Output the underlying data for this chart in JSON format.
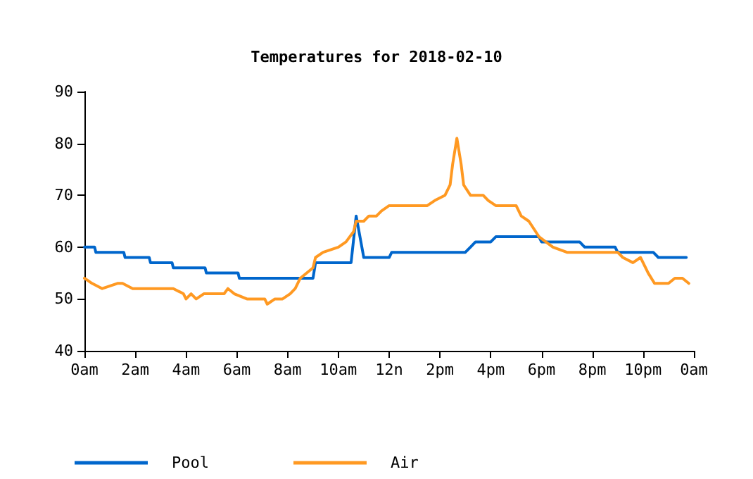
{
  "chart_data": {
    "type": "line",
    "title": "Temperatures for 2018-02-10",
    "xlim": [
      "2018-02-10T00:00",
      "2018-02-11T00:00"
    ],
    "xticks": [
      {
        "value": "2018-02-10T00:00",
        "label": "0am"
      },
      {
        "value": "2018-02-10T02:00",
        "label": "2am"
      },
      {
        "value": "2018-02-10T04:00",
        "label": "4am"
      },
      {
        "value": "2018-02-10T06:00",
        "label": "6am"
      },
      {
        "value": "2018-02-10T08:00",
        "label": "8am"
      },
      {
        "value": "2018-02-10T10:00",
        "label": "10am"
      },
      {
        "value": "2018-02-10T12:00",
        "label": "12n"
      },
      {
        "value": "2018-02-10T14:00",
        "label": "2pm"
      },
      {
        "value": "2018-02-10T16:00",
        "label": "4pm"
      },
      {
        "value": "2018-02-10T18:00",
        "label": "6pm"
      },
      {
        "value": "2018-02-10T20:00",
        "label": "8pm"
      },
      {
        "value": "2018-02-10T22:00",
        "label": "10pm"
      },
      {
        "value": "2018-02-11T00:00",
        "label": "0am"
      }
    ],
    "ylim": [
      40,
      90
    ],
    "yticks": [
      40,
      50,
      60,
      70,
      80,
      90
    ],
    "grid": false,
    "legend": "bottom left",
    "marker": "none",
    "line_style": "solid",
    "series": [
      {
        "name": "Pool",
        "color": "#0066cc",
        "x": [
          "2018-02-10T00:00",
          "2018-02-10T00:24",
          "2018-02-10T00:27",
          "2018-02-10T01:33",
          "2018-02-10T01:36",
          "2018-02-10T02:33",
          "2018-02-10T02:36",
          "2018-02-10T03:27",
          "2018-02-10T03:30",
          "2018-02-10T04:45",
          "2018-02-10T04:48",
          "2018-02-10T06:03",
          "2018-02-10T06:06",
          "2018-02-10T09:00",
          "2018-02-10T09:06",
          "2018-02-10T10:30",
          "2018-02-10T10:42",
          "2018-02-10T11:00",
          "2018-02-10T12:00",
          "2018-02-10T12:06",
          "2018-02-10T15:00",
          "2018-02-10T15:12",
          "2018-02-10T15:24",
          "2018-02-10T16:00",
          "2018-02-10T16:12",
          "2018-02-10T17:54",
          "2018-02-10T18:00",
          "2018-02-10T19:30",
          "2018-02-10T19:42",
          "2018-02-10T20:54",
          "2018-02-10T21:00",
          "2018-02-10T22:24",
          "2018-02-10T22:36",
          "2018-02-10T23:42"
        ],
        "values": [
          60,
          60,
          59,
          59,
          58,
          58,
          57,
          57,
          56,
          56,
          55,
          55,
          54,
          54,
          57,
          57,
          66,
          58,
          58,
          59,
          59,
          60,
          61,
          61,
          62,
          62,
          61,
          61,
          60,
          60,
          59,
          59,
          58,
          58
        ]
      },
      {
        "name": "Air",
        "color": "#ff9922",
        "x": [
          "2018-02-10T00:00",
          "2018-02-10T00:18",
          "2018-02-10T00:42",
          "2018-02-10T01:18",
          "2018-02-10T01:30",
          "2018-02-10T01:54",
          "2018-02-10T03:30",
          "2018-02-10T03:54",
          "2018-02-10T04:00",
          "2018-02-10T04:12",
          "2018-02-10T04:24",
          "2018-02-10T04:42",
          "2018-02-10T05:30",
          "2018-02-10T05:39",
          "2018-02-10T05:54",
          "2018-02-10T06:24",
          "2018-02-10T07:06",
          "2018-02-10T07:12",
          "2018-02-10T07:30",
          "2018-02-10T07:48",
          "2018-02-10T08:06",
          "2018-02-10T08:18",
          "2018-02-10T08:30",
          "2018-02-10T09:00",
          "2018-02-10T09:06",
          "2018-02-10T09:24",
          "2018-02-10T10:00",
          "2018-02-10T10:18",
          "2018-02-10T10:36",
          "2018-02-10T10:42",
          "2018-02-10T11:00",
          "2018-02-10T11:12",
          "2018-02-10T11:30",
          "2018-02-10T11:42",
          "2018-02-10T12:00",
          "2018-02-10T13:30",
          "2018-02-10T13:48",
          "2018-02-10T14:12",
          "2018-02-10T14:24",
          "2018-02-10T14:30",
          "2018-02-10T14:40",
          "2018-02-10T14:50",
          "2018-02-10T14:56",
          "2018-02-10T15:12",
          "2018-02-10T15:42",
          "2018-02-10T15:54",
          "2018-02-10T16:12",
          "2018-02-10T17:00",
          "2018-02-10T17:12",
          "2018-02-10T17:30",
          "2018-02-10T17:54",
          "2018-02-10T18:27",
          "2018-02-10T19:00",
          "2018-02-10T21:00",
          "2018-02-10T21:12",
          "2018-02-10T21:36",
          "2018-02-10T21:54",
          "2018-02-10T22:12",
          "2018-02-10T22:27",
          "2018-02-10T23:00",
          "2018-02-10T23:15",
          "2018-02-10T23:33",
          "2018-02-10T23:48"
        ],
        "values": [
          54,
          53,
          52,
          53,
          53,
          52,
          52,
          51,
          50,
          51,
          50,
          51,
          51,
          52,
          51,
          50,
          50,
          49,
          50,
          50,
          51,
          52,
          54,
          56,
          58,
          59,
          60,
          61,
          63,
          65,
          65,
          66,
          66,
          67,
          68,
          68,
          69,
          70,
          72,
          76,
          81,
          76,
          72,
          70,
          70,
          69,
          68,
          68,
          66,
          65,
          62,
          60,
          59,
          59,
          58,
          57,
          58,
          55,
          53,
          53,
          54,
          54,
          53
        ]
      }
    ]
  }
}
